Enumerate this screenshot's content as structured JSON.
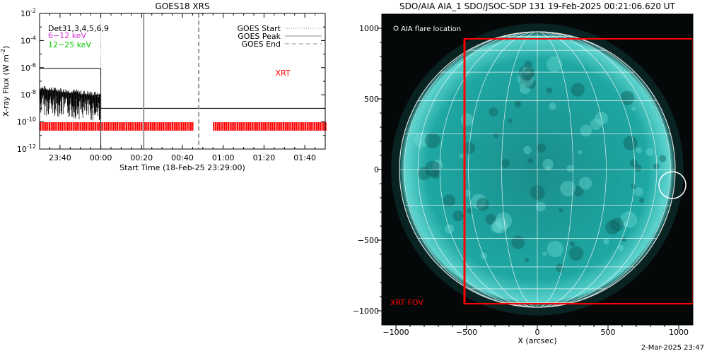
{
  "chart_data": [
    {
      "type": "line",
      "title": "GOES18 XRS",
      "xlabel": "Start Time (18-Feb-25 23:29:00)",
      "ylabel": "X-ray Flux (W m⁻²)",
      "ylabel_main": "X-ray Flux (W m",
      "ylabel_exp": "-2",
      "ylabel_close": ")",
      "yscale": "log",
      "ylim_exp": [
        -12,
        -2
      ],
      "ytick_exps": [
        -12,
        -10,
        -8,
        -6,
        -4,
        -2
      ],
      "xlim_min": [
        -30,
        110
      ],
      "xticks": [
        {
          "min": -20,
          "label": "23:40"
        },
        {
          "min": 0,
          "label": "00:00"
        },
        {
          "min": 20,
          "label": "00:20"
        },
        {
          "min": 40,
          "label": "00:40"
        },
        {
          "min": 60,
          "label": "01:00"
        },
        {
          "min": 80,
          "label": "01:20"
        },
        {
          "min": 100,
          "label": "01:40"
        }
      ],
      "legend_text": {
        "dets": "Det31,3,4,5,6,9",
        "band_low": "6−12 keV",
        "band_high": "12−25 keV"
      },
      "legend_lines": {
        "start": "GOES Start",
        "peak": "GOES Peak",
        "end": "GOES End"
      },
      "annotation": "XRT",
      "series": [
        {
          "name": "6−12 keV",
          "color": "#000000",
          "x_min": [
            -30,
            0,
            0,
            110
          ],
          "y_exp": [
            -6.05,
            -6.05,
            -9.0,
            -9.0
          ]
        },
        {
          "name": "12−25 keV",
          "color": "#000000",
          "x_min": [
            -30,
            -25,
            -20,
            -15,
            -10,
            -5,
            0,
            0,
            110
          ],
          "y_exp": [
            -7.6,
            -7.7,
            -7.8,
            -7.9,
            -8.0,
            -8.1,
            -8.0,
            -12,
            -12
          ]
        }
      ],
      "markers": {
        "goes_start_min": 0,
        "goes_peak_min": 21,
        "goes_end_min": 48
      },
      "xrt_coverage_min": [
        [
          -30,
          45
        ],
        [
          55,
          110
        ]
      ],
      "colors": {
        "det": "#000000",
        "band_low": "#cc33cc",
        "band_high": "#00cc00",
        "xrt": "#ff0000"
      }
    },
    {
      "type": "image",
      "title": "SDO/AIA AIA_1 SDO/JSOC-SDP 131 19-Feb-2025 00:21:06.620 UT",
      "xlabel": "X (arcsec)",
      "xlim": [
        -1100,
        1100
      ],
      "ylim": [
        -1100,
        1100
      ],
      "xticks": [
        -1000,
        -500,
        0,
        500,
        1000
      ],
      "yticks": [
        -1000,
        -500,
        0,
        500,
        1000
      ],
      "sun_radius_arcsec": 975,
      "flare_location": {
        "label": "AIA flare location",
        "x": 955,
        "y": -110
      },
      "xrt_fov": {
        "label": "XRT FOV",
        "x": [
          -515,
          1100
        ],
        "y": [
          -950,
          925
        ]
      },
      "colors": {
        "disk": "#1ea7a3",
        "background": "#050808",
        "fov": "#ff0000"
      }
    }
  ],
  "footer": {
    "timestamp": "2-Mar-2025 23:47"
  }
}
